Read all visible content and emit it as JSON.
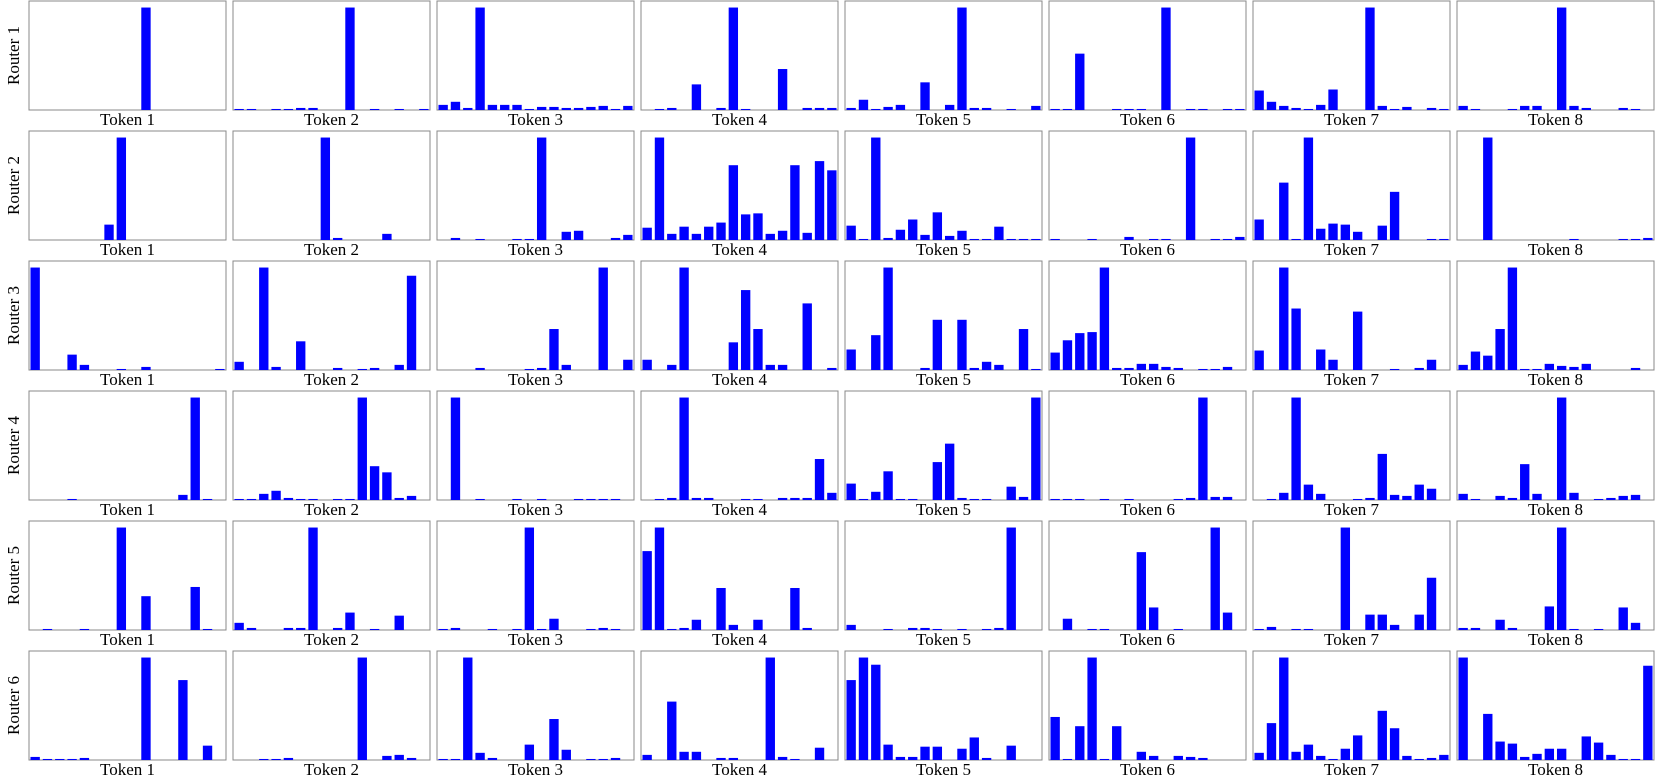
{
  "chart_data": [
    {
      "type": "bar",
      "ylabel": "Router 1",
      "xlabel": "Token 1",
      "ylim": [
        0,
        1
      ],
      "color": "#0000ff",
      "values": [
        0,
        0,
        0,
        0,
        0,
        0,
        0,
        0,
        0,
        1,
        0,
        0,
        0,
        0,
        0,
        0
      ]
    },
    {
      "type": "bar",
      "xlabel": "Token 2",
      "ylim": [
        0,
        1
      ],
      "color": "#0000ff",
      "values": [
        0.01,
        0.01,
        0,
        0.01,
        0.01,
        0.02,
        0.02,
        0,
        0,
        1,
        0,
        0.01,
        0,
        0.01,
        0,
        0.01
      ]
    },
    {
      "type": "bar",
      "xlabel": "Token 3",
      "ylim": [
        0,
        1
      ],
      "color": "#0000ff",
      "values": [
        0.05,
        0.08,
        0.02,
        1,
        0.05,
        0.05,
        0.05,
        0.01,
        0.03,
        0.03,
        0.02,
        0.02,
        0.03,
        0.04,
        0.01,
        0.04
      ]
    },
    {
      "type": "bar",
      "xlabel": "Token 4",
      "ylim": [
        0,
        1
      ],
      "color": "#0000ff",
      "values": [
        0,
        0.01,
        0.02,
        0,
        0.25,
        0,
        0.02,
        1,
        0.01,
        0,
        0,
        0.4,
        0,
        0.02,
        0.02,
        0.02
      ]
    },
    {
      "type": "bar",
      "xlabel": "Token 5",
      "ylim": [
        0,
        1
      ],
      "color": "#0000ff",
      "values": [
        0.02,
        0.1,
        0.01,
        0.03,
        0.05,
        0,
        0.27,
        0,
        0.05,
        1,
        0.02,
        0.02,
        0,
        0.01,
        0,
        0.04
      ]
    },
    {
      "type": "bar",
      "xlabel": "Token 6",
      "ylim": [
        0,
        1
      ],
      "color": "#0000ff",
      "values": [
        0.01,
        0.01,
        0.55,
        0,
        0,
        0.01,
        0.01,
        0.01,
        0,
        1,
        0,
        0.01,
        0.01,
        0,
        0.01,
        0.01
      ]
    },
    {
      "type": "bar",
      "xlabel": "Token 7",
      "ylim": [
        0,
        1
      ],
      "color": "#0000ff",
      "values": [
        0.19,
        0.08,
        0.04,
        0.02,
        0.01,
        0.05,
        0.2,
        0,
        0,
        1,
        0.04,
        0.01,
        0.03,
        0,
        0.02,
        0.01
      ]
    },
    {
      "type": "bar",
      "xlabel": "Token 8",
      "ylim": [
        0,
        1
      ],
      "color": "#0000ff",
      "values": [
        0.04,
        0.01,
        0,
        0,
        0.01,
        0.04,
        0.04,
        0,
        1,
        0.04,
        0.02,
        0,
        0,
        0.02,
        0.01,
        0
      ]
    },
    {
      "type": "bar",
      "ylabel": "Router 2",
      "xlabel": "Token 1",
      "ylim": [
        0,
        1
      ],
      "color": "#0000ff",
      "values": [
        0,
        0,
        0,
        0,
        0,
        0,
        0.15,
        1,
        0,
        0,
        0,
        0,
        0,
        0,
        0,
        0
      ]
    },
    {
      "type": "bar",
      "xlabel": "Token 2",
      "ylim": [
        0,
        1
      ],
      "color": "#0000ff",
      "values": [
        0,
        0,
        0,
        0,
        0,
        0,
        0,
        1,
        0.02,
        0,
        0,
        0,
        0.06,
        0,
        0,
        0
      ]
    },
    {
      "type": "bar",
      "xlabel": "Token 3",
      "ylim": [
        0,
        1
      ],
      "color": "#0000ff",
      "values": [
        0,
        0.02,
        0,
        0.01,
        0,
        0,
        0.01,
        0.01,
        1,
        0,
        0.08,
        0.09,
        0,
        0,
        0.02,
        0.05
      ]
    },
    {
      "type": "bar",
      "xlabel": "Token 4",
      "ylim": [
        0,
        1
      ],
      "color": "#0000ff",
      "values": [
        0.12,
        1,
        0.06,
        0.13,
        0.06,
        0.13,
        0.17,
        0.73,
        0.25,
        0.26,
        0.06,
        0.09,
        0.73,
        0.07,
        0.77,
        0.68
      ]
    },
    {
      "type": "bar",
      "xlabel": "Token 5",
      "ylim": [
        0,
        1
      ],
      "color": "#0000ff",
      "values": [
        0.14,
        0.01,
        1,
        0.02,
        0.1,
        0.2,
        0.05,
        0.27,
        0.04,
        0.09,
        0.01,
        0.01,
        0.13,
        0.01,
        0.01,
        0.01
      ]
    },
    {
      "type": "bar",
      "xlabel": "Token 6",
      "ylim": [
        0,
        1
      ],
      "color": "#0000ff",
      "values": [
        0.01,
        0,
        0,
        0.01,
        0,
        0,
        0.03,
        0,
        0.01,
        0.01,
        0,
        1,
        0,
        0.01,
        0.01,
        0.03
      ]
    },
    {
      "type": "bar",
      "xlabel": "Token 7",
      "ylim": [
        0,
        1
      ],
      "color": "#0000ff",
      "values": [
        0.2,
        0,
        0.56,
        0.01,
        1,
        0.11,
        0.16,
        0.15,
        0.08,
        0,
        0.14,
        0.47,
        0,
        0,
        0.01,
        0.01
      ]
    },
    {
      "type": "bar",
      "xlabel": "Token 8",
      "ylim": [
        0,
        1
      ],
      "color": "#0000ff",
      "values": [
        0,
        0,
        1,
        0,
        0,
        0,
        0,
        0,
        0,
        0.01,
        0,
        0,
        0,
        0.01,
        0.01,
        0.02
      ]
    },
    {
      "type": "bar",
      "ylabel": "Router 3",
      "xlabel": "Token 1",
      "ylim": [
        0,
        1
      ],
      "color": "#0000ff",
      "values": [
        1,
        0,
        0,
        0.15,
        0.05,
        0,
        0,
        0.01,
        0,
        0.03,
        0,
        0,
        0,
        0,
        0,
        0.01
      ]
    },
    {
      "type": "bar",
      "xlabel": "Token 2",
      "ylim": [
        0,
        1
      ],
      "color": "#0000ff",
      "values": [
        0.08,
        0,
        1,
        0.03,
        0,
        0.28,
        0,
        0,
        0.02,
        0,
        0.01,
        0.02,
        0,
        0.05,
        0.92,
        0
      ]
    },
    {
      "type": "bar",
      "xlabel": "Token 3",
      "ylim": [
        0,
        1
      ],
      "color": "#0000ff",
      "values": [
        0,
        0,
        0,
        0.02,
        0,
        0,
        0,
        0.01,
        0.02,
        0.4,
        0.05,
        0,
        0,
        1,
        0,
        0.1
      ]
    },
    {
      "type": "bar",
      "xlabel": "Token 4",
      "ylim": [
        0,
        1
      ],
      "color": "#0000ff",
      "values": [
        0.1,
        0,
        0.05,
        1,
        0,
        0,
        0,
        0.27,
        0.78,
        0.4,
        0.05,
        0.05,
        0,
        0.65,
        0,
        0.02
      ]
    },
    {
      "type": "bar",
      "xlabel": "Token 5",
      "ylim": [
        0,
        1
      ],
      "color": "#0000ff",
      "values": [
        0.2,
        0,
        0.34,
        1,
        0,
        0,
        0.02,
        0.49,
        0,
        0.49,
        0.02,
        0.08,
        0.05,
        0,
        0.4,
        0.01
      ]
    },
    {
      "type": "bar",
      "xlabel": "Token 6",
      "ylim": [
        0,
        1
      ],
      "color": "#0000ff",
      "values": [
        0.17,
        0.29,
        0.36,
        0.37,
        1,
        0.02,
        0.02,
        0.06,
        0.06,
        0.03,
        0.02,
        0,
        0.01,
        0.01,
        0.03,
        0
      ]
    },
    {
      "type": "bar",
      "xlabel": "Token 7",
      "ylim": [
        0,
        1
      ],
      "color": "#0000ff",
      "values": [
        0.19,
        0,
        1,
        0.6,
        0,
        0.2,
        0.1,
        0,
        0.57,
        0,
        0,
        0.01,
        0,
        0.02,
        0.1,
        0
      ]
    },
    {
      "type": "bar",
      "xlabel": "Token 8",
      "ylim": [
        0,
        1
      ],
      "color": "#0000ff",
      "values": [
        0.05,
        0.18,
        0.14,
        0.4,
        1,
        0.01,
        0.01,
        0.06,
        0.04,
        0.03,
        0.06,
        0,
        0,
        0,
        0.02,
        0
      ]
    },
    {
      "type": "bar",
      "ylabel": "Router 4",
      "xlabel": "Token 1",
      "ylim": [
        0,
        1
      ],
      "color": "#0000ff",
      "values": [
        0,
        0,
        0,
        0.01,
        0,
        0,
        0,
        0,
        0,
        0,
        0,
        0,
        0.05,
        1,
        0.01,
        0
      ]
    },
    {
      "type": "bar",
      "xlabel": "Token 2",
      "ylim": [
        0,
        1
      ],
      "color": "#0000ff",
      "values": [
        0.01,
        0.01,
        0.06,
        0.09,
        0.02,
        0.01,
        0.01,
        0,
        0.01,
        0.01,
        1,
        0.33,
        0.27,
        0.02,
        0.04,
        0
      ]
    },
    {
      "type": "bar",
      "xlabel": "Token 3",
      "ylim": [
        0,
        1
      ],
      "color": "#0000ff",
      "values": [
        0,
        1,
        0,
        0.01,
        0,
        0,
        0.01,
        0,
        0.01,
        0,
        0,
        0.01,
        0.01,
        0.01,
        0.01,
        0
      ]
    },
    {
      "type": "bar",
      "xlabel": "Token 4",
      "ylim": [
        0,
        1
      ],
      "color": "#0000ff",
      "values": [
        0,
        0.01,
        0.02,
        1,
        0.02,
        0.02,
        0,
        0,
        0.01,
        0.01,
        0,
        0.02,
        0.02,
        0.02,
        0.4,
        0.07
      ]
    },
    {
      "type": "bar",
      "xlabel": "Token 5",
      "ylim": [
        0,
        1
      ],
      "color": "#0000ff",
      "values": [
        0.16,
        0.01,
        0.08,
        0.28,
        0.01,
        0.01,
        0,
        0.37,
        0.55,
        0.02,
        0.01,
        0.01,
        0,
        0.13,
        0.03,
        1
      ]
    },
    {
      "type": "bar",
      "xlabel": "Token 6",
      "ylim": [
        0,
        1
      ],
      "color": "#0000ff",
      "values": [
        0.01,
        0.01,
        0.01,
        0,
        0.01,
        0,
        0.01,
        0,
        0,
        0,
        0.01,
        0.02,
        1,
        0.03,
        0.03,
        0
      ]
    },
    {
      "type": "bar",
      "xlabel": "Token 7",
      "ylim": [
        0,
        1
      ],
      "color": "#0000ff",
      "values": [
        0,
        0.01,
        0.07,
        1,
        0.15,
        0.06,
        0,
        0,
        0.01,
        0.02,
        0.45,
        0.05,
        0.04,
        0.15,
        0.11,
        0
      ]
    },
    {
      "type": "bar",
      "xlabel": "Token 8",
      "ylim": [
        0,
        1
      ],
      "color": "#0000ff",
      "values": [
        0.06,
        0.01,
        0,
        0.04,
        0.02,
        0.35,
        0.06,
        0,
        1,
        0.07,
        0,
        0.01,
        0.02,
        0.04,
        0.05,
        0
      ]
    },
    {
      "type": "bar",
      "ylabel": "Router 5",
      "xlabel": "Token 1",
      "ylim": [
        0,
        1
      ],
      "color": "#0000ff",
      "values": [
        0,
        0.01,
        0,
        0,
        0.01,
        0,
        0,
        1,
        0,
        0.33,
        0,
        0,
        0,
        0.42,
        0.01,
        0
      ]
    },
    {
      "type": "bar",
      "xlabel": "Token 2",
      "ylim": [
        0,
        1
      ],
      "color": "#0000ff",
      "values": [
        0.07,
        0.02,
        0,
        0,
        0.02,
        0.02,
        1,
        0,
        0.02,
        0.17,
        0,
        0.01,
        0,
        0.14,
        0,
        0
      ]
    },
    {
      "type": "bar",
      "xlabel": "Token 3",
      "ylim": [
        0,
        1
      ],
      "color": "#0000ff",
      "values": [
        0.01,
        0.02,
        0,
        0,
        0.01,
        0,
        0.01,
        1,
        0.01,
        0.11,
        0,
        0,
        0.01,
        0.02,
        0.01,
        0
      ]
    },
    {
      "type": "bar",
      "xlabel": "Token 4",
      "ylim": [
        0,
        1
      ],
      "color": "#0000ff",
      "values": [
        0.77,
        1,
        0.01,
        0.02,
        0.1,
        0,
        0.41,
        0.05,
        0,
        0.1,
        0,
        0,
        0.41,
        0.02,
        0,
        0
      ]
    },
    {
      "type": "bar",
      "xlabel": "Token 5",
      "ylim": [
        0,
        1
      ],
      "color": "#0000ff",
      "values": [
        0.05,
        0,
        0,
        0.01,
        0,
        0.02,
        0.02,
        0.01,
        0,
        0.01,
        0,
        0.01,
        0.02,
        1,
        0,
        0
      ]
    },
    {
      "type": "bar",
      "xlabel": "Token 6",
      "ylim": [
        0,
        1
      ],
      "color": "#0000ff",
      "values": [
        0,
        0.11,
        0,
        0.01,
        0.01,
        0,
        0,
        0.76,
        0.22,
        0,
        0.01,
        0,
        0,
        1,
        0.17,
        0
      ]
    },
    {
      "type": "bar",
      "xlabel": "Token 7",
      "ylim": [
        0,
        1
      ],
      "color": "#0000ff",
      "values": [
        0.01,
        0.03,
        0,
        0.01,
        0.01,
        0,
        0,
        1,
        0,
        0.15,
        0.15,
        0.05,
        0,
        0.15,
        0.51,
        0
      ]
    },
    {
      "type": "bar",
      "xlabel": "Token 8",
      "ylim": [
        0,
        1
      ],
      "color": "#0000ff",
      "values": [
        0.02,
        0.02,
        0,
        0.1,
        0.02,
        0,
        0,
        0.23,
        1,
        0.01,
        0,
        0.01,
        0,
        0.22,
        0.07,
        0
      ]
    },
    {
      "type": "bar",
      "ylabel": "Router 6",
      "xlabel": "Token 1",
      "ylim": [
        0,
        1
      ],
      "color": "#0000ff",
      "values": [
        0.03,
        0.01,
        0.01,
        0.01,
        0.02,
        0,
        0,
        0,
        0,
        1,
        0,
        0,
        0.78,
        0,
        0.14,
        0
      ]
    },
    {
      "type": "bar",
      "xlabel": "Token 2",
      "ylim": [
        0,
        1
      ],
      "color": "#0000ff",
      "values": [
        0,
        0,
        0.01,
        0.01,
        0.02,
        0,
        0,
        0,
        0,
        0,
        1,
        0,
        0.04,
        0.05,
        0.02,
        0
      ]
    },
    {
      "type": "bar",
      "xlabel": "Token 3",
      "ylim": [
        0,
        1
      ],
      "color": "#0000ff",
      "values": [
        0.01,
        0.01,
        1,
        0.07,
        0.02,
        0,
        0,
        0.15,
        0,
        0.4,
        0.1,
        0,
        0.01,
        0.01,
        0.02,
        0
      ]
    },
    {
      "type": "bar",
      "xlabel": "Token 4",
      "ylim": [
        0,
        1
      ],
      "color": "#0000ff",
      "values": [
        0.05,
        0,
        0.57,
        0.08,
        0.08,
        0,
        0.02,
        0.02,
        0,
        0,
        1,
        0.03,
        0.01,
        0,
        0.12,
        0
      ]
    },
    {
      "type": "bar",
      "xlabel": "Token 5",
      "ylim": [
        0,
        1
      ],
      "color": "#0000ff",
      "values": [
        0.78,
        1,
        0.93,
        0.15,
        0.03,
        0.03,
        0.13,
        0.13,
        0,
        0.11,
        0.22,
        0.02,
        0,
        0.14,
        0,
        0
      ]
    },
    {
      "type": "bar",
      "xlabel": "Token 6",
      "ylim": [
        0,
        1
      ],
      "color": "#0000ff",
      "values": [
        0.42,
        0.01,
        0.33,
        1,
        0.01,
        0.33,
        0,
        0.08,
        0.04,
        0,
        0.04,
        0.03,
        0.02,
        0,
        0,
        0
      ]
    },
    {
      "type": "bar",
      "xlabel": "Token 7",
      "ylim": [
        0,
        1
      ],
      "color": "#0000ff",
      "values": [
        0.07,
        0.36,
        1,
        0.08,
        0.15,
        0.04,
        0.01,
        0.11,
        0.24,
        0,
        0.48,
        0.31,
        0.04,
        0.01,
        0.02,
        0.05
      ]
    },
    {
      "type": "bar",
      "xlabel": "Token 8",
      "ylim": [
        0,
        1
      ],
      "color": "#0000ff",
      "values": [
        1,
        0,
        0.45,
        0.18,
        0.16,
        0.03,
        0.06,
        0.11,
        0.11,
        0,
        0.23,
        0.17,
        0.05,
        0.01,
        0.01,
        0.92
      ]
    }
  ]
}
